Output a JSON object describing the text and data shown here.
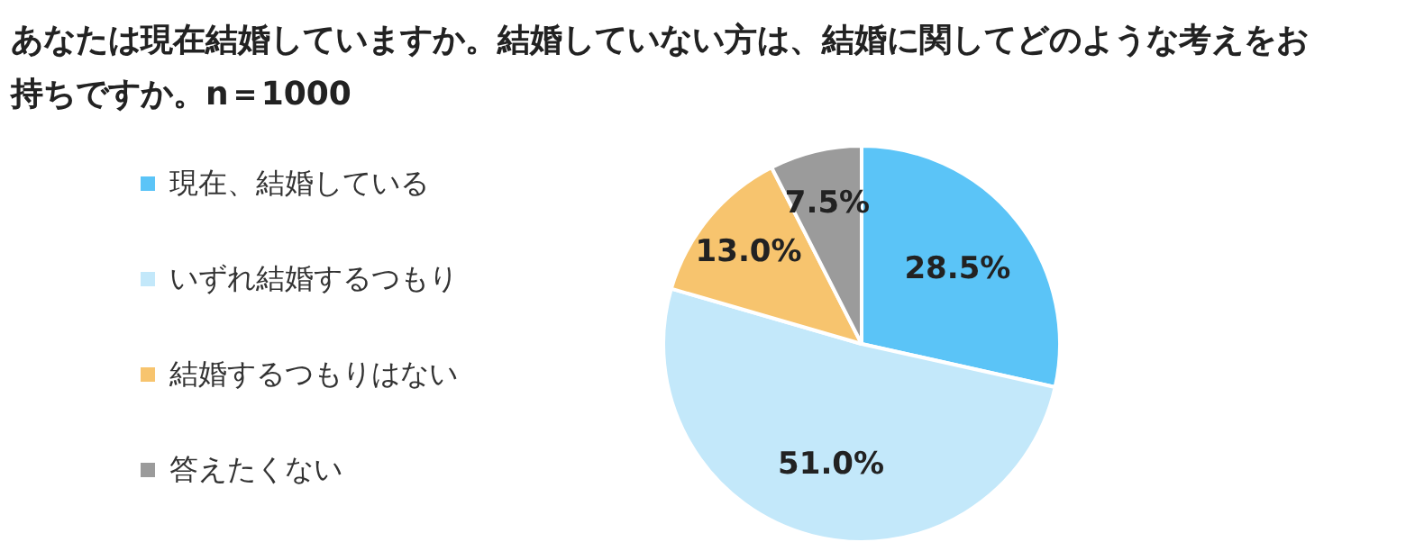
{
  "chart_data": {
    "type": "pie",
    "title": "あなたは現在結婚していますか。結婚していない方は、結婚に関してどのような考えをお持ちですか。n＝1000",
    "categories": [
      "現在、結婚している",
      "いずれ結婚するつもり",
      "結婚するつもりはない",
      "答えたくない"
    ],
    "values": [
      28.5,
      51.0,
      13.0,
      7.5
    ],
    "colors": [
      "#5bc4f7",
      "#c3e8fa",
      "#f7c46e",
      "#9b9b9b"
    ],
    "value_labels": [
      "28.5%",
      "51.0%",
      "13.0%",
      "7.5%"
    ],
    "legend": "left"
  }
}
